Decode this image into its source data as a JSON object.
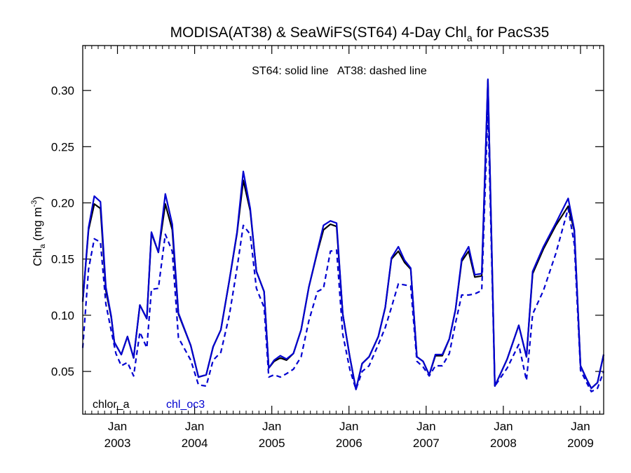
{
  "chart_data": {
    "type": "line",
    "title": {
      "main": "MODISA(AT38) & SeaWiFS(ST64) 4-Day Chl",
      "sub": "a",
      "tail": " for PacS35"
    },
    "ylabel": {
      "pre": "Chl",
      "sub": "a",
      "mid": " (mg m",
      "sup": "-3",
      "post": ")"
    },
    "annotation": "ST64: solid line   AT38: dashed line",
    "xlim": [
      2002.55,
      2009.3
    ],
    "ylim": [
      0.012,
      0.34
    ],
    "yticks": [
      "0.05",
      "0.10",
      "0.15",
      "0.20",
      "0.25",
      "0.30"
    ],
    "xticks": [
      {
        "month": "Jan",
        "year": "2003"
      },
      {
        "month": "Jan",
        "year": "2004"
      },
      {
        "month": "Jan",
        "year": "2005"
      },
      {
        "month": "Jan",
        "year": "2006"
      },
      {
        "month": "Jan",
        "year": "2007"
      },
      {
        "month": "Jan",
        "year": "2008"
      },
      {
        "month": "Jan",
        "year": "2009"
      }
    ],
    "legend": [
      {
        "label": "chlor_a",
        "color": "#000000"
      },
      {
        "label": "chl_oc3",
        "color": "#0000d0"
      }
    ],
    "series": [
      {
        "name": "chlor_a",
        "color": "#000000",
        "style": "solid",
        "points": [
          [
            2002.55,
            0.112
          ],
          [
            2002.625,
            0.176
          ],
          [
            2002.7,
            0.199
          ],
          [
            2002.78,
            0.195
          ],
          [
            2002.85,
            0.122
          ],
          [
            2002.92,
            0.098
          ],
          [
            2002.96,
            0.076
          ],
          [
            2003.05,
            0.065
          ],
          [
            2003.13,
            0.081
          ],
          [
            2003.21,
            0.062
          ],
          [
            2003.29,
            0.109
          ],
          [
            2003.38,
            0.097
          ],
          [
            2003.44,
            0.173
          ],
          [
            2003.53,
            0.156
          ],
          [
            2003.62,
            0.199
          ],
          [
            2003.71,
            0.176
          ],
          [
            2003.79,
            0.101
          ],
          [
            2003.95,
            0.073
          ],
          [
            2004.05,
            0.045
          ],
          [
            2004.15,
            0.047
          ],
          [
            2004.24,
            0.072
          ],
          [
            2004.34,
            0.087
          ],
          [
            2004.45,
            0.131
          ],
          [
            2004.55,
            0.173
          ],
          [
            2004.63,
            0.22
          ],
          [
            2004.72,
            0.193
          ],
          [
            2004.8,
            0.139
          ],
          [
            2004.9,
            0.121
          ],
          [
            2004.96,
            0.053
          ],
          [
            2005.03,
            0.059
          ],
          [
            2005.11,
            0.062
          ],
          [
            2005.19,
            0.06
          ],
          [
            2005.28,
            0.066
          ],
          [
            2005.38,
            0.087
          ],
          [
            2005.48,
            0.125
          ],
          [
            2005.59,
            0.156
          ],
          [
            2005.67,
            0.176
          ],
          [
            2005.76,
            0.181
          ],
          [
            2005.84,
            0.179
          ],
          [
            2005.92,
            0.101
          ],
          [
            2006.01,
            0.063
          ],
          [
            2006.09,
            0.034
          ],
          [
            2006.17,
            0.057
          ],
          [
            2006.26,
            0.063
          ],
          [
            2006.38,
            0.081
          ],
          [
            2006.47,
            0.107
          ],
          [
            2006.55,
            0.15
          ],
          [
            2006.64,
            0.157
          ],
          [
            2006.72,
            0.147
          ],
          [
            2006.8,
            0.141
          ],
          [
            2006.88,
            0.063
          ],
          [
            2006.96,
            0.059
          ],
          [
            2007.04,
            0.047
          ],
          [
            2007.12,
            0.064
          ],
          [
            2007.21,
            0.064
          ],
          [
            2007.3,
            0.079
          ],
          [
            2007.38,
            0.105
          ],
          [
            2007.46,
            0.148
          ],
          [
            2007.55,
            0.157
          ],
          [
            2007.63,
            0.134
          ],
          [
            2007.72,
            0.135
          ],
          [
            2007.8,
            0.309
          ],
          [
            2007.89,
            0.037
          ],
          [
            2008.05,
            0.061
          ],
          [
            2008.2,
            0.091
          ],
          [
            2008.3,
            0.063
          ],
          [
            2008.38,
            0.137
          ],
          [
            2008.52,
            0.159
          ],
          [
            2008.68,
            0.18
          ],
          [
            2008.84,
            0.197
          ],
          [
            2008.92,
            0.175
          ],
          [
            2009.0,
            0.055
          ],
          [
            2009.08,
            0.043
          ],
          [
            2009.14,
            0.035
          ],
          [
            2009.22,
            0.04
          ],
          [
            2009.3,
            0.065
          ]
        ]
      },
      {
        "name": "chl_oc3",
        "color": "#0000d0",
        "style": "solid",
        "points": [
          [
            2002.55,
            0.112
          ],
          [
            2002.625,
            0.178
          ],
          [
            2002.7,
            0.206
          ],
          [
            2002.78,
            0.201
          ],
          [
            2002.85,
            0.125
          ],
          [
            2002.92,
            0.099
          ],
          [
            2002.96,
            0.076
          ],
          [
            2003.05,
            0.065
          ],
          [
            2003.13,
            0.081
          ],
          [
            2003.21,
            0.062
          ],
          [
            2003.29,
            0.109
          ],
          [
            2003.38,
            0.097
          ],
          [
            2003.44,
            0.174
          ],
          [
            2003.53,
            0.156
          ],
          [
            2003.62,
            0.208
          ],
          [
            2003.71,
            0.181
          ],
          [
            2003.79,
            0.102
          ],
          [
            2003.95,
            0.073
          ],
          [
            2004.05,
            0.045
          ],
          [
            2004.15,
            0.047
          ],
          [
            2004.24,
            0.072
          ],
          [
            2004.34,
            0.087
          ],
          [
            2004.45,
            0.131
          ],
          [
            2004.55,
            0.174
          ],
          [
            2004.63,
            0.228
          ],
          [
            2004.72,
            0.195
          ],
          [
            2004.8,
            0.139
          ],
          [
            2004.9,
            0.121
          ],
          [
            2004.96,
            0.053
          ],
          [
            2005.03,
            0.06
          ],
          [
            2005.11,
            0.064
          ],
          [
            2005.19,
            0.061
          ],
          [
            2005.28,
            0.066
          ],
          [
            2005.38,
            0.087
          ],
          [
            2005.48,
            0.125
          ],
          [
            2005.59,
            0.157
          ],
          [
            2005.67,
            0.18
          ],
          [
            2005.76,
            0.184
          ],
          [
            2005.84,
            0.182
          ],
          [
            2005.92,
            0.101
          ],
          [
            2006.01,
            0.063
          ],
          [
            2006.09,
            0.034
          ],
          [
            2006.17,
            0.057
          ],
          [
            2006.26,
            0.063
          ],
          [
            2006.38,
            0.081
          ],
          [
            2006.47,
            0.107
          ],
          [
            2006.55,
            0.151
          ],
          [
            2006.64,
            0.161
          ],
          [
            2006.72,
            0.149
          ],
          [
            2006.8,
            0.142
          ],
          [
            2006.88,
            0.063
          ],
          [
            2006.96,
            0.059
          ],
          [
            2007.04,
            0.047
          ],
          [
            2007.12,
            0.065
          ],
          [
            2007.21,
            0.065
          ],
          [
            2007.3,
            0.079
          ],
          [
            2007.38,
            0.105
          ],
          [
            2007.46,
            0.15
          ],
          [
            2007.55,
            0.161
          ],
          [
            2007.63,
            0.136
          ],
          [
            2007.72,
            0.137
          ],
          [
            2007.8,
            0.31
          ],
          [
            2007.89,
            0.037
          ],
          [
            2008.05,
            0.061
          ],
          [
            2008.2,
            0.091
          ],
          [
            2008.3,
            0.063
          ],
          [
            2008.38,
            0.139
          ],
          [
            2008.52,
            0.161
          ],
          [
            2008.68,
            0.182
          ],
          [
            2008.84,
            0.204
          ],
          [
            2008.92,
            0.176
          ],
          [
            2009.0,
            0.055
          ],
          [
            2009.08,
            0.043
          ],
          [
            2009.14,
            0.035
          ],
          [
            2009.22,
            0.04
          ],
          [
            2009.3,
            0.065
          ]
        ]
      },
      {
        "name": "chl_oc3",
        "color": "#0000d0",
        "style": "dashed",
        "points": [
          [
            2002.55,
            0.071
          ],
          [
            2002.625,
            0.141
          ],
          [
            2002.7,
            0.168
          ],
          [
            2002.78,
            0.165
          ],
          [
            2002.85,
            0.11
          ],
          [
            2002.92,
            0.086
          ],
          [
            2002.98,
            0.066
          ],
          [
            2003.05,
            0.055
          ],
          [
            2003.13,
            0.058
          ],
          [
            2003.21,
            0.046
          ],
          [
            2003.29,
            0.085
          ],
          [
            2003.38,
            0.071
          ],
          [
            2003.44,
            0.123
          ],
          [
            2003.53,
            0.124
          ],
          [
            2003.62,
            0.172
          ],
          [
            2003.71,
            0.157
          ],
          [
            2003.79,
            0.08
          ],
          [
            2003.95,
            0.06
          ],
          [
            2004.05,
            0.038
          ],
          [
            2004.15,
            0.037
          ],
          [
            2004.24,
            0.06
          ],
          [
            2004.34,
            0.067
          ],
          [
            2004.45,
            0.1
          ],
          [
            2004.55,
            0.142
          ],
          [
            2004.63,
            0.18
          ],
          [
            2004.72,
            0.172
          ],
          [
            2004.8,
            0.124
          ],
          [
            2004.9,
            0.107
          ],
          [
            2004.96,
            0.045
          ],
          [
            2005.03,
            0.047
          ],
          [
            2005.11,
            0.045
          ],
          [
            2005.19,
            0.048
          ],
          [
            2005.28,
            0.052
          ],
          [
            2005.38,
            0.063
          ],
          [
            2005.48,
            0.095
          ],
          [
            2005.59,
            0.121
          ],
          [
            2005.67,
            0.124
          ],
          [
            2005.76,
            0.157
          ],
          [
            2005.84,
            0.158
          ],
          [
            2005.92,
            0.083
          ],
          [
            2006.01,
            0.052
          ],
          [
            2006.09,
            0.034
          ],
          [
            2006.17,
            0.05
          ],
          [
            2006.26,
            0.055
          ],
          [
            2006.38,
            0.074
          ],
          [
            2006.47,
            0.089
          ],
          [
            2006.55,
            0.107
          ],
          [
            2006.64,
            0.128
          ],
          [
            2006.72,
            0.127
          ],
          [
            2006.8,
            0.126
          ],
          [
            2006.88,
            0.059
          ],
          [
            2006.96,
            0.054
          ],
          [
            2007.04,
            0.046
          ],
          [
            2007.12,
            0.055
          ],
          [
            2007.21,
            0.055
          ],
          [
            2007.3,
            0.066
          ],
          [
            2007.38,
            0.093
          ],
          [
            2007.46,
            0.118
          ],
          [
            2007.55,
            0.118
          ],
          [
            2007.63,
            0.119
          ],
          [
            2007.72,
            0.122
          ],
          [
            2007.8,
            0.285
          ],
          [
            2007.89,
            0.037
          ],
          [
            2008.05,
            0.053
          ],
          [
            2008.2,
            0.074
          ],
          [
            2008.3,
            0.042
          ],
          [
            2008.38,
            0.101
          ],
          [
            2008.52,
            0.122
          ],
          [
            2008.68,
            0.155
          ],
          [
            2008.84,
            0.195
          ],
          [
            2008.92,
            0.163
          ],
          [
            2009.0,
            0.051
          ],
          [
            2009.08,
            0.04
          ],
          [
            2009.14,
            0.032
          ],
          [
            2009.22,
            0.035
          ],
          [
            2009.3,
            0.05
          ]
        ]
      }
    ]
  }
}
